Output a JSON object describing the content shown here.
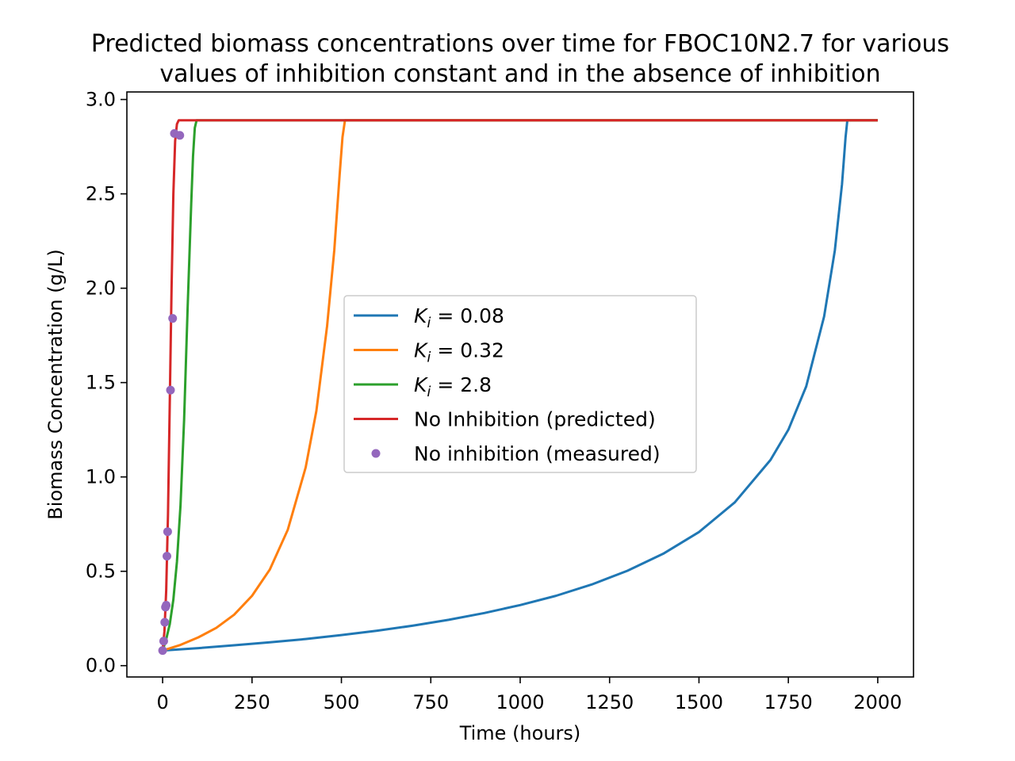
{
  "chart_data": {
    "type": "line",
    "title_line1": "Predicted biomass concentrations over time for FBOC10N2.7 for various",
    "title_line2": "values of inhibition constant and in the absence of inhibition",
    "xlabel": "Time (hours)",
    "ylabel": "Biomass Concentration (g/L)",
    "xlim": [
      -100,
      2100
    ],
    "ylim": [
      -0.06,
      3.04
    ],
    "xticks": [
      0,
      250,
      500,
      750,
      1000,
      1250,
      1500,
      1750,
      2000
    ],
    "xtick_labels": [
      "0",
      "250",
      "500",
      "750",
      "1000",
      "1250",
      "1500",
      "1750",
      "2000"
    ],
    "yticks": [
      0.0,
      0.5,
      1.0,
      1.5,
      2.0,
      2.5,
      3.0
    ],
    "ytick_labels": [
      "0.0",
      "0.5",
      "1.0",
      "1.5",
      "2.0",
      "2.5",
      "3.0"
    ],
    "grid": false,
    "legend_position": "center",
    "series": [
      {
        "name": "K_i = 0.08",
        "legend_symbol": "K",
        "legend_sub": "i",
        "legend_value": " = 0.08",
        "color": "#1f77b4",
        "style": "line",
        "x": [
          0,
          100,
          200,
          300,
          400,
          500,
          600,
          700,
          800,
          900,
          1000,
          1100,
          1200,
          1300,
          1400,
          1500,
          1600,
          1700,
          1750,
          1800,
          1850,
          1880,
          1900,
          1910,
          1915,
          2000
        ],
        "y": [
          0.08,
          0.093,
          0.108,
          0.124,
          0.141,
          0.162,
          0.185,
          0.212,
          0.243,
          0.279,
          0.321,
          0.37,
          0.43,
          0.503,
          0.593,
          0.708,
          0.865,
          1.09,
          1.25,
          1.48,
          1.85,
          2.2,
          2.55,
          2.8,
          2.89,
          2.89
        ]
      },
      {
        "name": "K_i = 0.32",
        "legend_symbol": "K",
        "legend_sub": "i",
        "legend_value": " = 0.32",
        "color": "#ff7f0e",
        "style": "line",
        "x": [
          0,
          50,
          100,
          150,
          200,
          250,
          300,
          350,
          400,
          430,
          460,
          480,
          495,
          503,
          510,
          2000
        ],
        "y": [
          0.08,
          0.11,
          0.15,
          0.2,
          0.27,
          0.37,
          0.51,
          0.72,
          1.05,
          1.35,
          1.8,
          2.2,
          2.6,
          2.8,
          2.89,
          2.89
        ]
      },
      {
        "name": "K_i = 2.8",
        "legend_symbol": "K",
        "legend_sub": "i",
        "legend_value": " = 2.8",
        "color": "#2ca02c",
        "style": "line",
        "x": [
          0,
          10,
          20,
          30,
          40,
          50,
          60,
          70,
          80,
          85,
          90,
          95,
          2000
        ],
        "y": [
          0.08,
          0.14,
          0.22,
          0.35,
          0.55,
          0.85,
          1.3,
          1.9,
          2.45,
          2.7,
          2.85,
          2.89,
          2.89
        ]
      },
      {
        "name": "No Inhibition (predicted)",
        "color": "#d62728",
        "style": "line",
        "x": [
          0,
          5,
          10,
          15,
          20,
          25,
          30,
          35,
          40,
          45,
          50,
          2000
        ],
        "y": [
          0.08,
          0.18,
          0.4,
          0.8,
          1.4,
          2.0,
          2.5,
          2.78,
          2.87,
          2.89,
          2.89,
          2.89
        ]
      },
      {
        "name": "No inhibition (measured)",
        "color": "#9467bd",
        "style": "marker",
        "x": [
          0,
          3,
          6,
          8,
          10,
          12,
          14,
          22,
          28,
          33,
          48
        ],
        "y": [
          0.08,
          0.13,
          0.23,
          0.31,
          0.32,
          0.58,
          0.71,
          1.46,
          1.84,
          2.82,
          2.81
        ]
      }
    ]
  }
}
